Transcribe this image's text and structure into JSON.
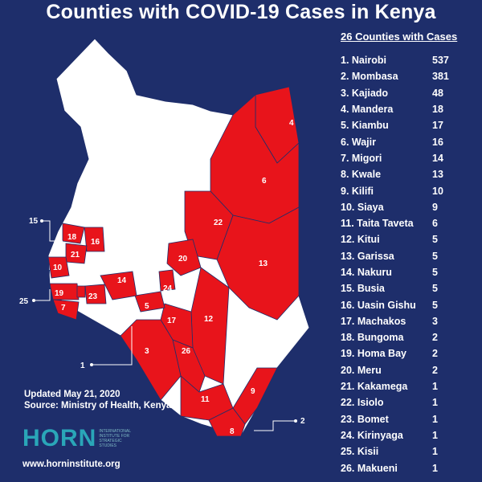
{
  "title": "Counties with COVID-19 Cases in Kenya",
  "list": {
    "header": "26 Counties with Cases",
    "items": [
      {
        "rank": "1.",
        "name": "Nairobi",
        "cases": "537"
      },
      {
        "rank": "2.",
        "name": "Mombasa",
        "cases": "381"
      },
      {
        "rank": "3.",
        "name": "Kajiado",
        "cases": "48"
      },
      {
        "rank": "4.",
        "name": "Mandera",
        "cases": "18"
      },
      {
        "rank": "5.",
        "name": "Kiambu",
        "cases": "17"
      },
      {
        "rank": "6.",
        "name": "Wajir",
        "cases": "16"
      },
      {
        "rank": "7.",
        "name": "Migori",
        "cases": "14"
      },
      {
        "rank": "8.",
        "name": "Kwale",
        "cases": "13"
      },
      {
        "rank": "9.",
        "name": "Kilifi",
        "cases": "10"
      },
      {
        "rank": "10.",
        "name": "Siaya",
        "cases": "9"
      },
      {
        "rank": "11.",
        "name": "Taita Taveta",
        "cases": "6"
      },
      {
        "rank": "12.",
        "name": "Kitui",
        "cases": "5"
      },
      {
        "rank": "13.",
        "name": "Garissa",
        "cases": "5"
      },
      {
        "rank": "14.",
        "name": "Nakuru",
        "cases": "5"
      },
      {
        "rank": "15.",
        "name": "Busia",
        "cases": "5"
      },
      {
        "rank": "16.",
        "name": "Uasin Gishu",
        "cases": "5"
      },
      {
        "rank": "17.",
        "name": "Machakos",
        "cases": "3"
      },
      {
        "rank": "18.",
        "name": "Bungoma",
        "cases": "2"
      },
      {
        "rank": "19.",
        "name": "Homa Bay",
        "cases": "2"
      },
      {
        "rank": "20.",
        "name": "Meru",
        "cases": "2"
      },
      {
        "rank": "21.",
        "name": "Kakamega",
        "cases": "1"
      },
      {
        "rank": "22.",
        "name": "Isiolo",
        "cases": "1"
      },
      {
        "rank": "23.",
        "name": "Bomet",
        "cases": "1"
      },
      {
        "rank": "24.",
        "name": "Kirinyaga",
        "cases": "1"
      },
      {
        "rank": "25.",
        "name": "Kisii",
        "cases": "1"
      },
      {
        "rank": "26.",
        "name": "Makueni",
        "cases": "1"
      }
    ]
  },
  "map": {
    "affected_color": "#e8141b",
    "unaffected_color": "#ffffff",
    "region_labels": [
      "1",
      "2",
      "3",
      "4",
      "5",
      "6",
      "7",
      "8",
      "9",
      "10",
      "11",
      "12",
      "13",
      "14",
      "15",
      "16",
      "17",
      "18",
      "19",
      "20",
      "21",
      "22",
      "23",
      "24",
      "25",
      "26"
    ]
  },
  "footer": {
    "updated": "Updated May 21, 2020",
    "source": "Source: Ministry of Health, Kenya",
    "logo_text": "HORN",
    "logo_subtext": "INTERNATIONAL INSTITUTE FOR STRATEGIC STUDIES",
    "website": "www.horninstitute.org"
  }
}
